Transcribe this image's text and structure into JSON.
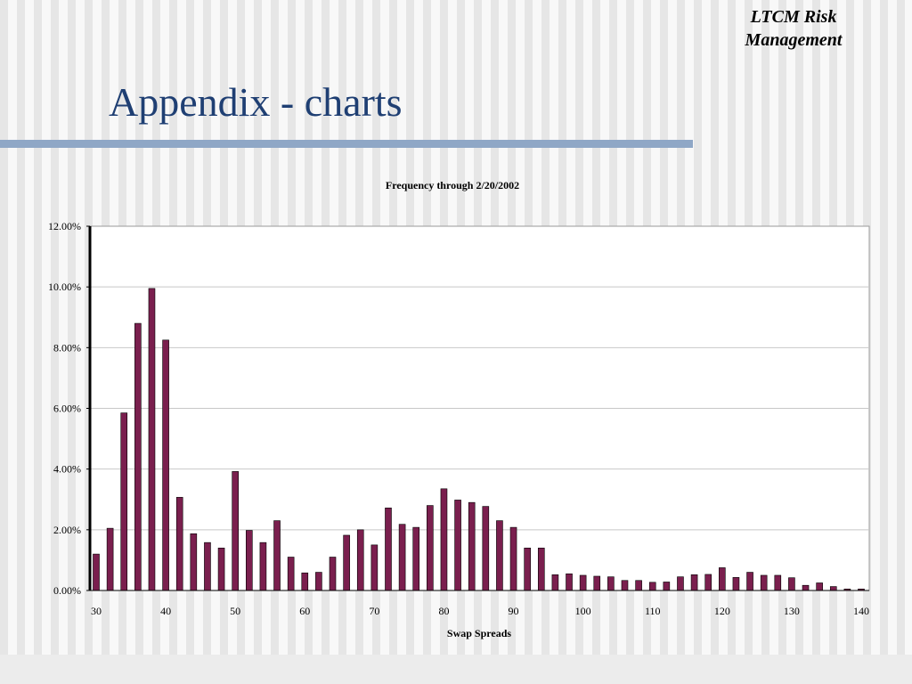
{
  "header": {
    "corner_label": "LTCM Risk Management",
    "title": "Appendix - charts"
  },
  "colors": {
    "title": "#1f3f73",
    "rule": "#8fa7c6",
    "bar_fill": "#7a1f4e"
  },
  "chart_data": {
    "type": "bar",
    "title": "Frequency through 2/20/2002",
    "xlabel": "Swap Spreads",
    "ylabel": "",
    "ylim": [
      0,
      0.12
    ],
    "grid": true,
    "legend": "none",
    "y_tick_labels": [
      "0.00%",
      "2.00%",
      "4.00%",
      "6.00%",
      "8.00%",
      "10.00%",
      "12.00%"
    ],
    "x_tick_labels": [
      "30",
      "40",
      "50",
      "60",
      "70",
      "80",
      "90",
      "100",
      "110",
      "120",
      "130",
      "140"
    ],
    "categories": [
      30,
      32,
      34,
      36,
      38,
      40,
      42,
      44,
      46,
      48,
      50,
      52,
      54,
      56,
      58,
      60,
      62,
      64,
      66,
      68,
      70,
      72,
      74,
      76,
      78,
      80,
      82,
      84,
      86,
      88,
      90,
      92,
      94,
      96,
      98,
      100,
      102,
      104,
      106,
      108,
      110,
      112,
      114,
      116,
      118,
      120,
      122,
      124,
      126,
      128,
      130,
      132,
      134,
      136,
      138,
      140
    ],
    "values": [
      0.012,
      0.0205,
      0.0585,
      0.088,
      0.0995,
      0.0825,
      0.0307,
      0.0187,
      0.0158,
      0.014,
      0.0392,
      0.0198,
      0.0158,
      0.023,
      0.011,
      0.0058,
      0.006,
      0.011,
      0.0182,
      0.02,
      0.015,
      0.0272,
      0.0218,
      0.0208,
      0.028,
      0.0335,
      0.0298,
      0.029,
      0.0277,
      0.023,
      0.0208,
      0.014,
      0.014,
      0.0052,
      0.0055,
      0.005,
      0.0047,
      0.0045,
      0.0033,
      0.0033,
      0.0027,
      0.0028,
      0.0045,
      0.0052,
      0.0053,
      0.0075,
      0.0043,
      0.006,
      0.005,
      0.005,
      0.0042,
      0.0017,
      0.0025,
      0.0013,
      0.0005,
      0.0005
    ]
  }
}
